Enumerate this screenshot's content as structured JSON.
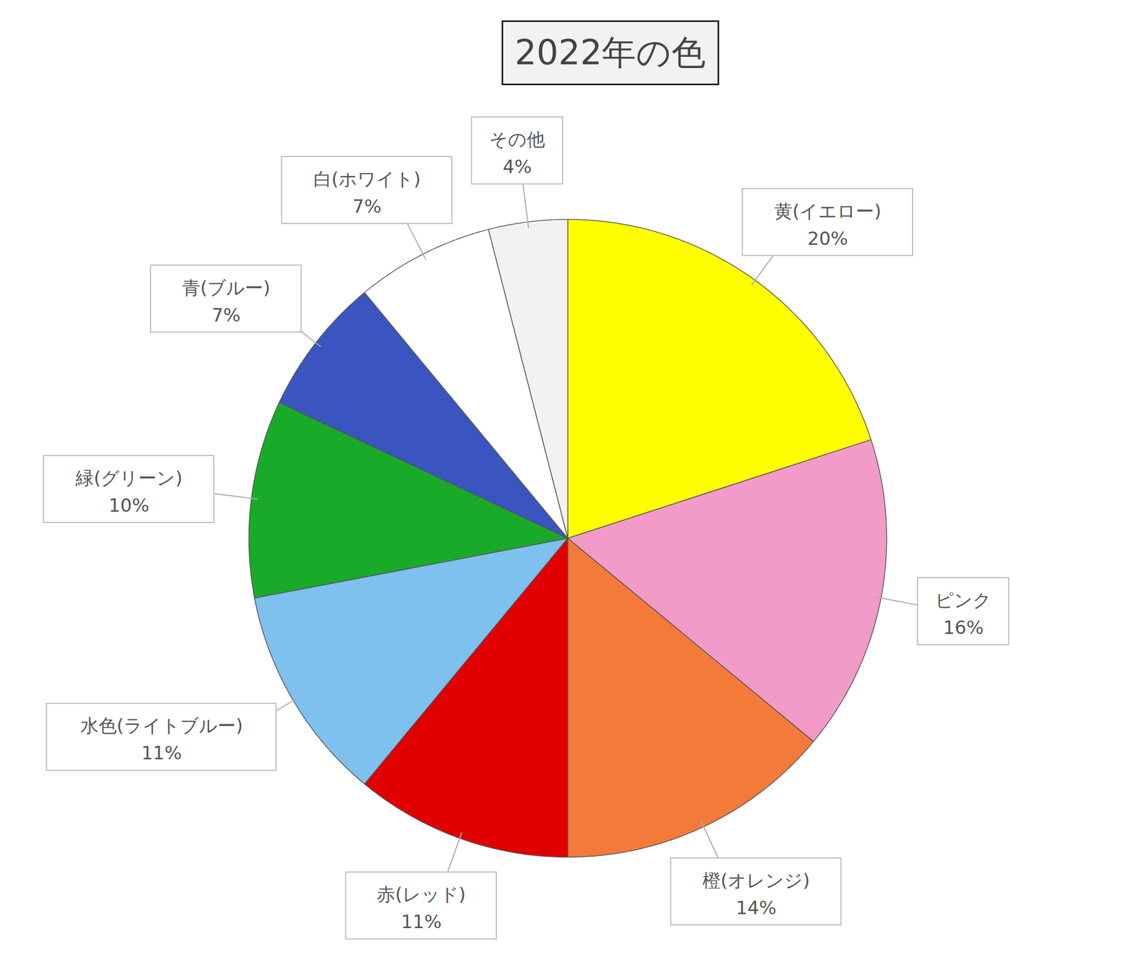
{
  "chart_data": {
    "type": "pie",
    "title": "2022年の色",
    "categories": [
      "黄(イエロー)",
      "ピンク",
      "橙(オレンジ)",
      "赤(レッド)",
      "水色(ライトブルー)",
      "緑(グリーン)",
      "青(ブルー)",
      "白(ホワイト)",
      "その他"
    ],
    "values": [
      20,
      16,
      14,
      11,
      11,
      10,
      7,
      7,
      4
    ],
    "value_labels": [
      "20%",
      "16%",
      "14%",
      "11%",
      "11%",
      "10%",
      "7%",
      "7%",
      "4%"
    ],
    "colors": [
      "#ffff00",
      "#f29ac8",
      "#f47a3a",
      "#e00000",
      "#7ec0ee",
      "#1aaa2a",
      "#3a55c0",
      "#ffffff",
      "#f2f2f2"
    ],
    "data_labels": true
  }
}
